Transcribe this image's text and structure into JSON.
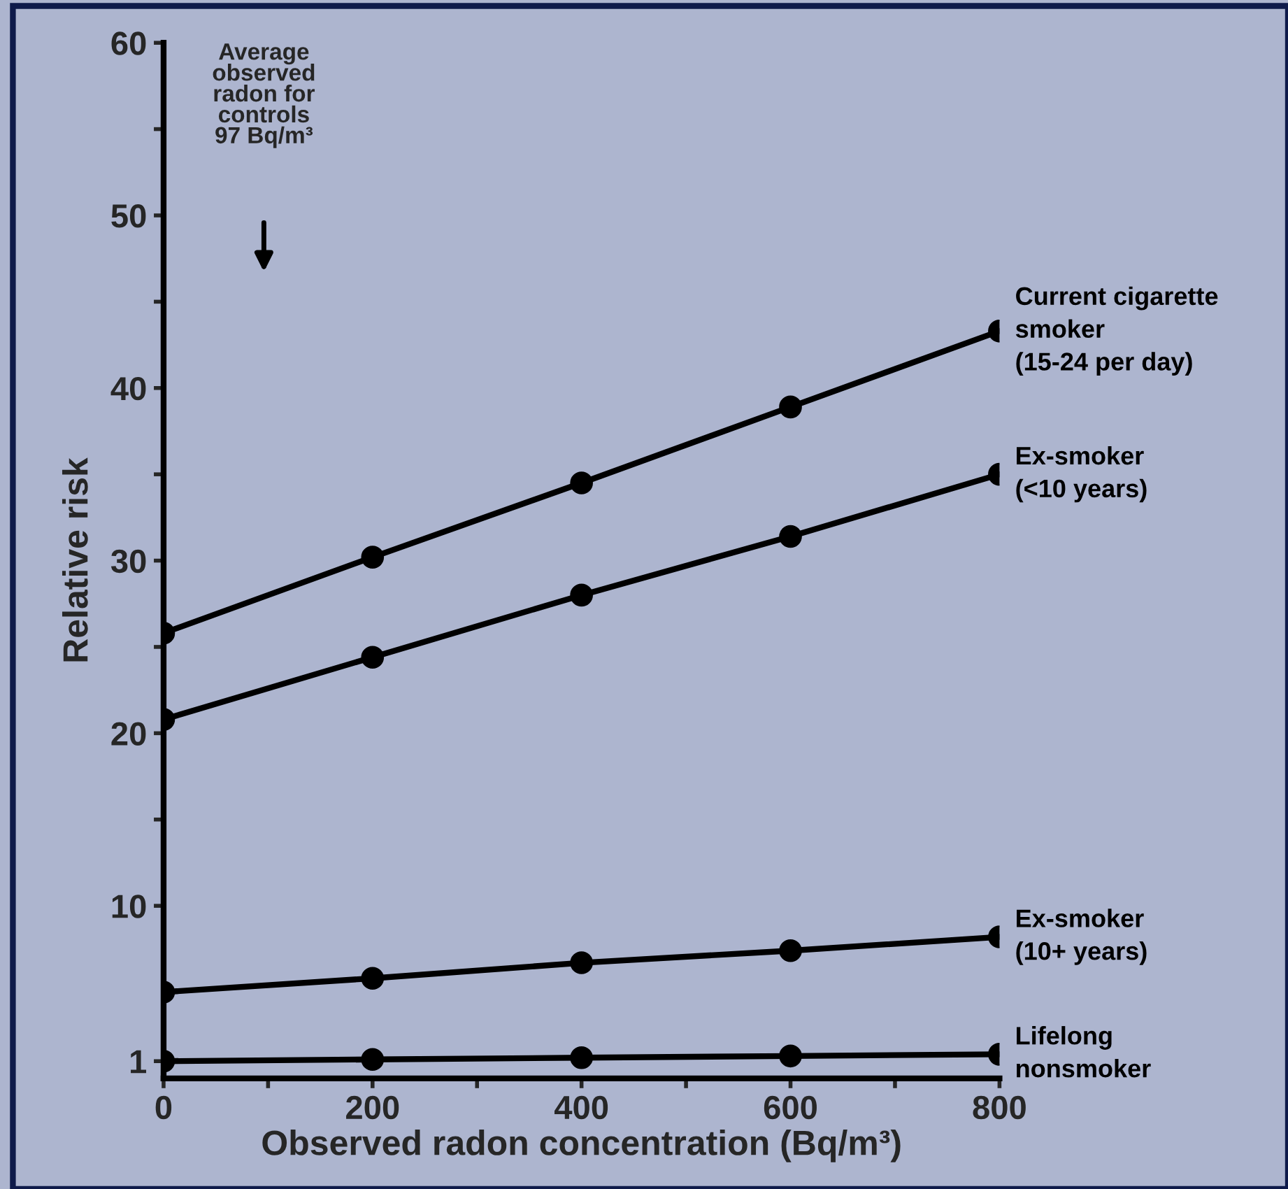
{
  "chart_data": {
    "type": "line",
    "xlabel": "Observed radon concentration (Bq/m³)",
    "ylabel": "Relative risk",
    "x": [
      0,
      200,
      400,
      600,
      800
    ],
    "series": [
      {
        "name": "Current cigarette\nsmoker\n(15-24 per day)",
        "color": "#000000",
        "values": [
          25.8,
          30.2,
          34.5,
          38.9,
          43.3
        ]
      },
      {
        "name": "Ex-smoker\n(<10 years)",
        "color": "#000000",
        "values": [
          20.8,
          24.4,
          28.0,
          31.4,
          35.0
        ]
      },
      {
        "name": "Ex-smoker\n(10+ years)",
        "color": "#000000",
        "values": [
          5.0,
          5.8,
          6.7,
          7.4,
          8.2
        ]
      },
      {
        "name": "Lifelong\nnonsmoker",
        "color": "#000000",
        "values": [
          1.0,
          1.1,
          1.2,
          1.3,
          1.4
        ]
      }
    ],
    "annotations": [
      "Average\nobserved\nradon for\ncontrols\n97 Bq/m³"
    ],
    "xlim": [
      0,
      800
    ],
    "xticks": [
      0,
      {
        "value": 100,
        "label": null
      },
      200,
      {
        "value": 300,
        "label": null
      },
      400,
      {
        "value": 500,
        "label": null
      },
      600,
      {
        "value": 700,
        "label": null
      },
      800
    ],
    "ylim": [
      0,
      60
    ],
    "yticks": [
      1,
      10,
      {
        "value": 15,
        "label": null
      },
      20,
      {
        "value": 25,
        "label": null
      },
      30,
      {
        "value": 35,
        "label": null
      },
      40,
      {
        "value": 45,
        "label": null
      },
      50,
      {
        "value": 55,
        "label": null
      },
      60
    ],
    "marker": "circle",
    "line_style": "solid",
    "legend": false,
    "grid": false
  }
}
